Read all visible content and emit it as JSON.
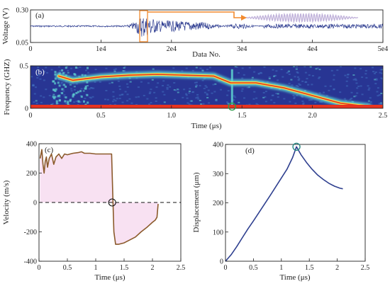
{
  "chart_data": [
    {
      "panel": "(a)",
      "type": "line",
      "xlabel": "Data No.",
      "ylabel": "Voltage (V)",
      "xlim": [
        0,
        50000
      ],
      "ylim": [
        0.05,
        0.3
      ],
      "x_ticks": [
        "0",
        "1e4",
        "2e4",
        "3e4",
        "4e4",
        "5e4"
      ],
      "y_ticks": [
        "0.05",
        "0.30"
      ],
      "baseline_value": 0.175,
      "burst_center": 16000,
      "colors": {
        "signal": "#2b3a8f",
        "highlight": "#f28a2e",
        "inset": "#b9a9d6"
      }
    },
    {
      "panel": "(b)",
      "type": "heatmap",
      "xlabel": "Time (μs)",
      "ylabel": "Frequency (GHZ)",
      "xlim": [
        0,
        2.5
      ],
      "ylim": [
        0,
        0.5
      ],
      "x_ticks": [
        "0",
        "0.5",
        "1.0",
        "1.5",
        "2.0",
        "2.5"
      ],
      "y_ticks": [
        "0",
        "0.5"
      ],
      "ridge": {
        "x": [
          0.2,
          0.3,
          0.5,
          0.7,
          0.9,
          1.1,
          1.3,
          1.42,
          1.6,
          1.8,
          2.0,
          2.2,
          2.4
        ],
        "y": [
          0.38,
          0.33,
          0.37,
          0.39,
          0.4,
          0.39,
          0.38,
          0.3,
          0.3,
          0.24,
          0.15,
          0.06,
          0.02
        ]
      },
      "marker": {
        "x": 1.43,
        "y": 0.02
      },
      "colors": {
        "background": "#283593",
        "low": "#3f6fc0",
        "mid": "#5fd3d1",
        "high": "#f0e14a",
        "peak": "#e8331f"
      }
    },
    {
      "panel": "(c)",
      "type": "line",
      "xlabel": "Time (μs)",
      "ylabel": "Velocity (m/s)",
      "xlim": [
        0,
        2.5
      ],
      "ylim": [
        -400,
        400
      ],
      "x_ticks": [
        "0",
        "0.5",
        "1",
        "1.5",
        "2",
        "2.5"
      ],
      "y_ticks": [
        "-400",
        "-200",
        "0",
        "200",
        "400"
      ],
      "reference_line": 0,
      "series": [
        {
          "x": [
            0.02,
            0.05,
            0.07,
            0.09,
            0.11,
            0.13,
            0.15,
            0.18,
            0.22,
            0.26,
            0.3,
            0.35,
            0.4,
            0.45,
            0.5,
            0.55,
            0.6,
            0.7,
            0.75,
            0.8,
            0.9,
            1.0,
            1.1,
            1.2,
            1.28,
            1.3,
            1.32,
            1.35,
            1.4,
            1.5,
            1.6,
            1.7,
            1.8,
            1.9,
            2.0,
            2.05,
            2.08,
            2.1
          ],
          "y": [
            300,
            360,
            260,
            200,
            280,
            310,
            240,
            300,
            330,
            260,
            310,
            330,
            300,
            330,
            325,
            330,
            335,
            340,
            345,
            335,
            335,
            330,
            330,
            330,
            330,
            60,
            -200,
            -285,
            -285,
            -275,
            -255,
            -235,
            -200,
            -170,
            -135,
            -120,
            -100,
            -10
          ]
        }
      ],
      "marker": {
        "x": 1.29,
        "y": 0
      },
      "colors": {
        "line": "#8b5a2b",
        "fill": "#f5d7ee",
        "dash": "#111111"
      }
    },
    {
      "panel": "(d)",
      "type": "line",
      "xlabel": "Time (μs)",
      "ylabel": "Displacement (μm)",
      "xlim": [
        0,
        2.5
      ],
      "ylim": [
        0,
        400
      ],
      "x_ticks": [
        "0",
        "0.5",
        "1",
        "1.5",
        "2",
        "2.5"
      ],
      "y_ticks": [
        "0",
        "100",
        "200",
        "300",
        "400"
      ],
      "series": [
        {
          "x": [
            0,
            0.1,
            0.2,
            0.3,
            0.4,
            0.5,
            0.6,
            0.7,
            0.8,
            0.9,
            1.0,
            1.1,
            1.2,
            1.27,
            1.35,
            1.45,
            1.55,
            1.65,
            1.75,
            1.85,
            1.95,
            2.05,
            2.1
          ],
          "y": [
            0,
            22,
            50,
            80,
            110,
            138,
            167,
            196,
            225,
            255,
            285,
            315,
            355,
            392,
            365,
            338,
            315,
            295,
            280,
            267,
            257,
            250,
            248
          ]
        }
      ],
      "marker": {
        "x": 1.27,
        "y": 392
      },
      "colors": {
        "line": "#2e3f8f",
        "marker": "#2a8a86"
      }
    }
  ]
}
